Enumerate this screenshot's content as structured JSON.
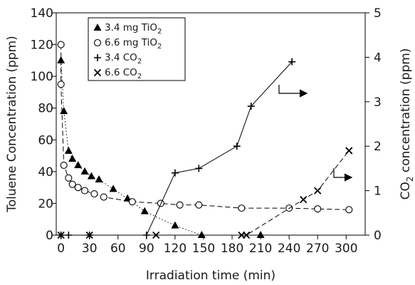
{
  "chart_data": {
    "type": "scatter",
    "x_axis": {
      "label": "Irradiation time (min)",
      "range": [
        -5,
        320
      ],
      "ticks": [
        0,
        30,
        60,
        90,
        120,
        150,
        180,
        210,
        240,
        270,
        300
      ]
    },
    "y_axis_left": {
      "label_parts": [
        "Toluene Concentration (ppm)"
      ],
      "range": [
        0,
        140
      ],
      "ticks": [
        0,
        20,
        40,
        60,
        80,
        100,
        120,
        140
      ]
    },
    "y_axis_right": {
      "label_parts": [
        "CO",
        "2",
        " concentration (ppm)"
      ],
      "range": [
        0,
        5
      ],
      "ticks": [
        0,
        1,
        2,
        3,
        4,
        5
      ]
    },
    "legend": {
      "position": "top-left",
      "entries": [
        {
          "symbol": "▲",
          "text": "3.4 mg TiO",
          "sub": "2"
        },
        {
          "symbol": "○",
          "text": "6.6 mg TiO",
          "sub": "2"
        },
        {
          "symbol": "+",
          "text": "3.4 CO",
          "sub": "2"
        },
        {
          "symbol": "×",
          "text": "6.6 CO",
          "sub": "2"
        }
      ]
    },
    "series": [
      {
        "marker": "triangle",
        "axis": "left",
        "line": "dotted",
        "points": [
          [
            0,
            110
          ],
          [
            3,
            78
          ],
          [
            8,
            53
          ],
          [
            12,
            48
          ],
          [
            18,
            44
          ],
          [
            25,
            40
          ],
          [
            32,
            37
          ],
          [
            40,
            35
          ],
          [
            55,
            29
          ],
          [
            70,
            23
          ],
          [
            88,
            15
          ],
          [
            120,
            6
          ],
          [
            148,
            0
          ],
          [
            210,
            0
          ]
        ]
      },
      {
        "marker": "circle",
        "axis": "left",
        "line": "dashed",
        "points": [
          [
            0,
            120
          ],
          [
            0,
            95
          ],
          [
            3,
            44
          ],
          [
            8,
            36
          ],
          [
            12,
            32
          ],
          [
            18,
            30
          ],
          [
            25,
            28
          ],
          [
            35,
            26
          ],
          [
            45,
            24
          ],
          [
            75,
            21
          ],
          [
            105,
            20
          ],
          [
            125,
            19
          ],
          [
            145,
            19
          ],
          [
            190,
            17
          ],
          [
            240,
            17
          ],
          [
            270,
            16.5
          ],
          [
            303,
            16
          ]
        ]
      },
      {
        "marker": "plus",
        "axis": "right",
        "line": "solid",
        "points": [
          [
            0,
            0
          ],
          [
            8,
            0
          ],
          [
            30,
            0
          ],
          [
            90,
            0
          ],
          [
            120,
            1.4
          ],
          [
            145,
            1.5
          ],
          [
            185,
            2
          ],
          [
            200,
            2.9
          ],
          [
            243,
            3.9
          ]
        ]
      },
      {
        "marker": "cross",
        "axis": "right",
        "line": "dashed",
        "points": [
          [
            0,
            0
          ],
          [
            30,
            0
          ],
          [
            100,
            0
          ],
          [
            190,
            0
          ],
          [
            195,
            0
          ],
          [
            255,
            0.8
          ],
          [
            270,
            1
          ],
          [
            303,
            1.9
          ]
        ]
      }
    ]
  }
}
